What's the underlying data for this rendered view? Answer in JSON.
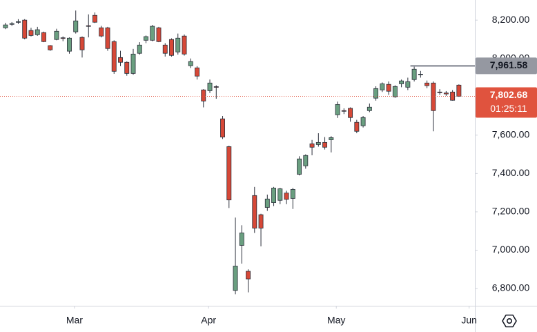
{
  "chart_data": {
    "type": "candlestick",
    "categories": [
      null,
      null,
      null,
      null,
      null,
      null,
      null,
      null,
      null,
      null,
      null,
      null,
      null,
      null,
      null,
      null,
      null,
      null,
      null,
      null,
      null,
      null,
      null,
      null,
      null,
      null,
      null,
      null,
      null,
      null,
      null,
      null,
      null,
      null,
      null,
      null,
      null,
      null,
      null,
      null,
      null,
      null,
      null,
      null,
      null,
      null,
      null,
      null,
      null,
      null,
      null,
      null,
      null,
      null,
      null,
      null,
      null,
      null,
      null,
      null,
      null,
      null,
      null,
      null,
      null,
      null,
      null,
      null,
      null,
      null,
      null,
      null
    ],
    "open": [
      8160,
      8178,
      8190,
      8200,
      8146,
      8124,
      8135,
      8067,
      8099,
      8108,
      8038,
      8139,
      8110,
      8171,
      8225,
      8160,
      8160,
      8088,
      8005,
      7980,
      7922,
      8027,
      8095,
      8095,
      8160,
      8070,
      8099,
      8034,
      8117,
      7962,
      7951,
      7836,
      7832,
      7853,
      7685,
      7540,
      6790,
      7025,
      6890,
      7285,
      7185,
      7223,
      7248,
      7260,
      7298,
      7270,
      7396,
      7440,
      7555,
      7551,
      7562,
      7576,
      7706,
      7728,
      7740,
      7667,
      7649,
      7728,
      7793,
      7836,
      7865,
      7800,
      7868,
      7850,
      7890,
      7915,
      7872,
      7872,
      7825,
      7820,
      7825,
      7861
    ],
    "high": [
      8186,
      8190,
      8205,
      8205,
      8160,
      8165,
      8140,
      8070,
      8155,
      8115,
      8110,
      8250,
      8115,
      8230,
      8240,
      8170,
      8165,
      8095,
      8040,
      7985,
      8050,
      8085,
      8120,
      8175,
      8165,
      8080,
      8105,
      8130,
      8125,
      8000,
      7960,
      7840,
      7890,
      7860,
      7700,
      7545,
      7170,
      7130,
      6900,
      7330,
      7190,
      7290,
      7330,
      7325,
      7310,
      7325,
      7490,
      7500,
      7575,
      7610,
      7590,
      7595,
      7775,
      7740,
      7745,
      7680,
      7700,
      7765,
      7855,
      7875,
      7880,
      7860,
      7890,
      7900,
      7962,
      7935,
      7885,
      7880,
      7840,
      7830,
      7835,
      7865
    ],
    "low": [
      8153,
      8170,
      8180,
      8100,
      8115,
      8118,
      8085,
      8040,
      8095,
      8090,
      8025,
      8130,
      8005,
      8110,
      8185,
      8110,
      8040,
      7920,
      7960,
      7910,
      7915,
      8020,
      8080,
      8090,
      8085,
      8010,
      8010,
      8020,
      8015,
      7950,
      7890,
      7745,
      7820,
      7790,
      7580,
      7220,
      6770,
      6930,
      6780,
      7090,
      7020,
      7205,
      7230,
      7240,
      7240,
      7215,
      7390,
      7425,
      7495,
      7540,
      7525,
      7510,
      7690,
      7710,
      7670,
      7610,
      7640,
      7720,
      7780,
      7825,
      7810,
      7795,
      7850,
      7835,
      7880,
      7900,
      7845,
      7620,
      7810,
      7805,
      7780,
      7800
    ],
    "close": [
      8175,
      8182,
      8192,
      8106,
      8120,
      8150,
      8088,
      8045,
      8142,
      8105,
      8106,
      8196,
      8045,
      8169,
      8189,
      8117,
      8052,
      7933,
      7980,
      7922,
      8023,
      8070,
      8114,
      8168,
      8088,
      8027,
      8016,
      8106,
      8023,
      7984,
      7908,
      7778,
      7872,
      7850,
      7590,
      7262,
      6917,
      7090,
      6850,
      7115,
      7115,
      7267,
      7324,
      7320,
      7265,
      7317,
      7476,
      7494,
      7537,
      7562,
      7537,
      7587,
      7760,
      7726,
      7692,
      7620,
      7692,
      7746,
      7843,
      7868,
      7829,
      7854,
      7883,
      7879,
      7944,
      7918,
      7858,
      7728,
      7822,
      7815,
      7782,
      7803
    ],
    "up_color": "#6a9f80",
    "down_color": "#d64837",
    "xlim": [
      -0.86,
      73.5
    ],
    "xticks": [
      {
        "value": 10.8,
        "label": "Mar"
      },
      {
        "value": 31.8,
        "label": "Apr"
      },
      {
        "value": 51.8,
        "label": "May"
      },
      {
        "value": 72.6,
        "label": "Jun"
      }
    ],
    "ylim": [
      6710,
      8305
    ],
    "yticks": [
      {
        "value": 6800,
        "label": "6,800.00"
      },
      {
        "value": 7000,
        "label": "7,000.00"
      },
      {
        "value": 7200,
        "label": "7,200.00"
      },
      {
        "value": 7400,
        "label": "7,400.00"
      },
      {
        "value": 7600,
        "label": "7,600.00"
      },
      {
        "value": 7800,
        "label": "7,800.00"
      },
      {
        "value": 8000,
        "label": "8,000.00"
      },
      {
        "value": 8200,
        "label": "8,200.00"
      }
    ],
    "price_lines": [
      {
        "value": 7961.58,
        "label": "7,961.58",
        "color": "#9598a1",
        "from": 63.4
      },
      {
        "value": 7802.68,
        "label": "7,802.68",
        "countdown": "01:25:11",
        "color": "#e0533e"
      }
    ]
  }
}
